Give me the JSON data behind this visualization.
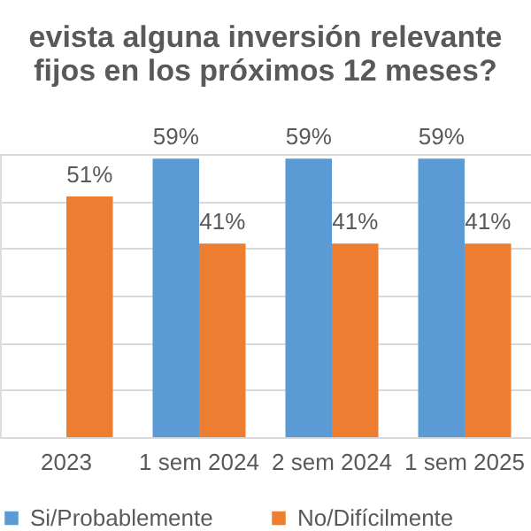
{
  "chart_data": {
    "type": "bar",
    "title": [
      "evista alguna inversión relevante",
      "fijos en los próximos 12 meses?"
    ],
    "categories": [
      "2023",
      "1 sem 2024",
      "2 sem 2024",
      "1 sem 2025"
    ],
    "series": [
      {
        "name": "Si/Probablemente",
        "color": "#5b9bd5",
        "values": [
          null,
          59,
          59,
          59
        ],
        "value_labels": [
          null,
          "59%",
          "59%",
          "59%"
        ]
      },
      {
        "name": "No/Difícilmente",
        "color": "#ed7d31",
        "values": [
          51,
          41,
          41,
          41
        ],
        "value_labels": [
          "51%",
          "41%",
          "41%",
          "41%"
        ]
      }
    ],
    "grid": "y",
    "tick_labels": "x",
    "legend": "bottom"
  }
}
